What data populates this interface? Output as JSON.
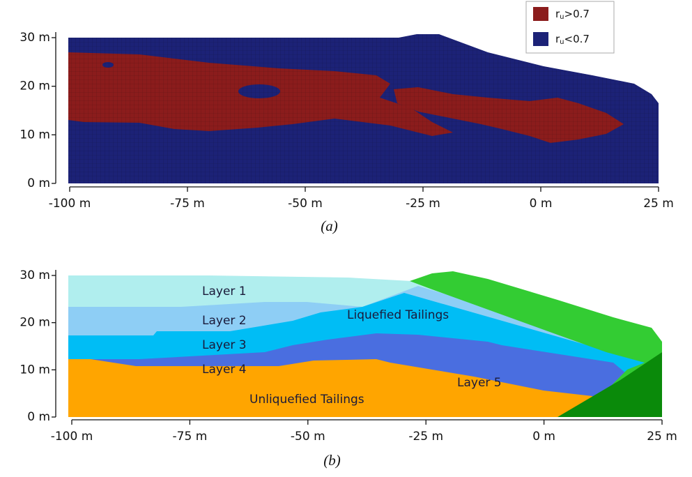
{
  "chart_data": [
    {
      "type": "region-map",
      "caption": "(a)",
      "xlim": [
        -100,
        25
      ],
      "ylim": [
        0,
        30
      ],
      "xticks": [
        {
          "value": -100,
          "label": "-100 m"
        },
        {
          "value": -75,
          "label": "-75 m"
        },
        {
          "value": -50,
          "label": "-50 m"
        },
        {
          "value": -25,
          "label": "-25 m"
        },
        {
          "value": 0,
          "label": "0 m"
        },
        {
          "value": 25,
          "label": "25 m"
        }
      ],
      "yticks": [
        {
          "value": 0,
          "label": "0 m"
        },
        {
          "value": 10,
          "label": "10 m"
        },
        {
          "value": 20,
          "label": "20 m"
        },
        {
          "value": 30,
          "label": "30 m"
        }
      ],
      "legend": [
        {
          "symbol": "r",
          "subscript": "u",
          "condition": ">0.7",
          "color": "#8b1c1c"
        },
        {
          "symbol": "r",
          "subscript": "u",
          "condition": "<0.7",
          "color": "#1c2277"
        }
      ]
    },
    {
      "type": "region-map",
      "caption": "(b)",
      "xlim": [
        -100,
        25
      ],
      "ylim": [
        0,
        30
      ],
      "xticks": [
        {
          "value": -100,
          "label": "-100 m"
        },
        {
          "value": -75,
          "label": "-75 m"
        },
        {
          "value": -50,
          "label": "-50 m"
        },
        {
          "value": -25,
          "label": "-25 m"
        },
        {
          "value": 0,
          "label": "0 m"
        },
        {
          "value": 25,
          "label": "25 m"
        }
      ],
      "yticks": [
        {
          "value": 0,
          "label": "0 m"
        },
        {
          "value": 10,
          "label": "10 m"
        },
        {
          "value": 20,
          "label": "20 m"
        },
        {
          "value": 30,
          "label": "30 m"
        }
      ],
      "annotations": [
        "Layer 1",
        "Layer 2",
        "Layer 3",
        "Layer 4",
        "Liquefied Tailings",
        "Layer 5",
        "Unliquefied Tailings"
      ]
    }
  ]
}
